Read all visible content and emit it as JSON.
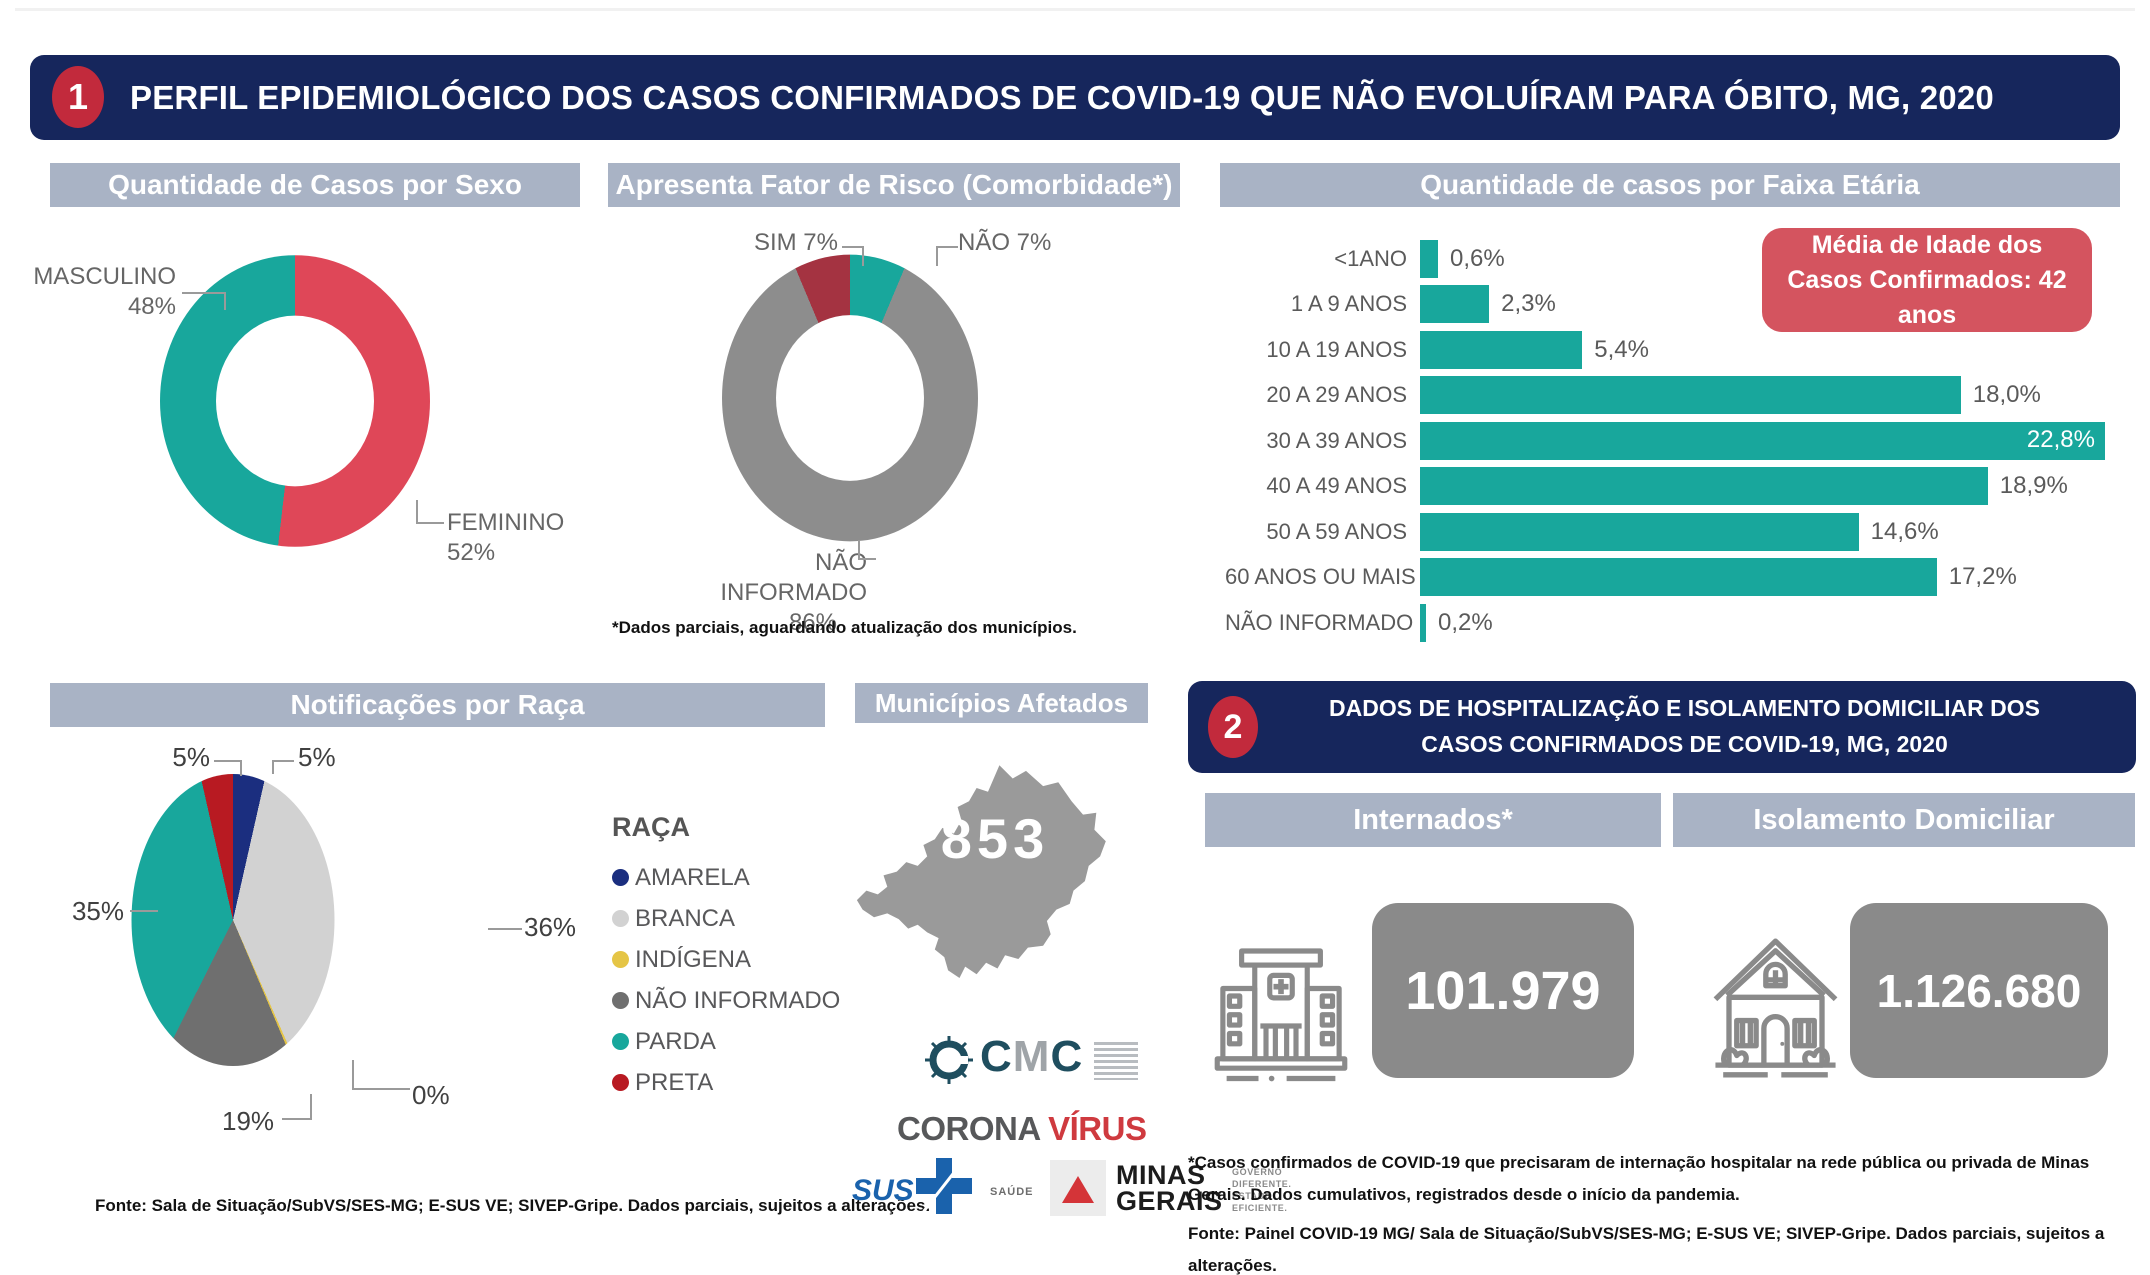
{
  "colors": {
    "navy": "#16265C",
    "badge_red": "#C22A3C",
    "band_gray": "#A9B3C5",
    "teal": "#18A79C",
    "female_red": "#DF4758",
    "dark_red": "#A43341",
    "slice_gray": "#8D8D8D",
    "media_box_red": "#D4545F",
    "value_box_gray": "#8A8A8A",
    "map_gray": "#9A9A9A"
  },
  "panel1": {
    "badge": "1",
    "title": "PERFIL EPIDEMIOLÓGICO DOS CASOS CONFIRMADOS DE COVID-19 QUE NÃO EVOLUÍRAM PARA ÓBITO, MG, 2020"
  },
  "sexo": {
    "header": "Quantidade de Casos por Sexo",
    "label_masculino": "MASCULINO",
    "value_masculino": "48%",
    "label_feminino": "FEMININO",
    "value_feminino": "52%"
  },
  "comorbidade": {
    "header": "Apresenta Fator de Risco (Comorbidade*)",
    "label_sim": "SIM 7%",
    "label_nao": "NÃO 7%",
    "label_ni": "NÃO INFORMADO",
    "value_ni": "86%",
    "footnote": "*Dados parciais, aguardando atualização dos municípios."
  },
  "faixa": {
    "header": "Quantidade de casos por Faixa Etária",
    "media_box": "Média de Idade dos Casos Confirmados: 42 anos"
  },
  "raca": {
    "header": "Notificações por Raça",
    "legend_title": "RAÇA",
    "fonte": "Fonte: Sala de Situação/SubVS/SES-MG; E-SUS VE; SIVEP-Gripe. Dados parciais, sujeitos a alterações."
  },
  "municipios": {
    "header": "Municípios Afetados",
    "count": "853"
  },
  "logos": {
    "cmc_c1": "C",
    "cmc_m": "M",
    "cmc_c2": "C",
    "corona": "CORONA ",
    "virus": "VÍRUS",
    "sus": "SUS",
    "saude": "SAÚDE",
    "mg_line1": "MINAS",
    "mg_line2": "GERAIS",
    "gov": "GOVERNO DIFERENTE. ESTADO EFICIENTE."
  },
  "panel2": {
    "badge": "2",
    "title": "DADOS DE HOSPITALIZAÇÃO E ISOLAMENTO DOMICILIAR DOS CASOS CONFIRMADOS DE COVID-19, MG, 2020",
    "internados_header": "Internados*",
    "isolamento_header": "Isolamento Domiciliar",
    "internados_value": "101.979",
    "isolamento_value": "1.126.680",
    "footnote_1": "*Casos confirmados de COVID-19 que precisaram de internação hospitalar na rede pública ou privada de Minas Gerais. Dados cumulativos, registrados desde o início da pandemia.",
    "footnote_2": "Fonte: Painel COVID-19 MG/ Sala de Situação/SubVS/SES-MG; E-SUS VE; SIVEP-Gripe. Dados parciais, sujeitos a alterações."
  },
  "chart_data": [
    {
      "type": "pie",
      "variant": "donut",
      "title": "Quantidade de Casos por Sexo",
      "start_angle": "top",
      "direction": "clockwise",
      "segments": [
        {
          "label": "FEMININO",
          "value": 52,
          "color": "#DF4758"
        },
        {
          "label": "MASCULINO",
          "value": 48,
          "color": "#18A79C"
        }
      ]
    },
    {
      "type": "pie",
      "variant": "donut",
      "title": "Apresenta Fator de Risco (Comorbidade*)",
      "start_angle": "top",
      "direction": "clockwise",
      "segments": [
        {
          "label": "NÃO",
          "value": 7,
          "color": "#18A79C"
        },
        {
          "label": "NÃO INFORMADO",
          "value": 86,
          "color": "#8D8D8D"
        },
        {
          "label": "SIM",
          "value": 7,
          "color": "#A43341"
        }
      ]
    },
    {
      "type": "bar",
      "orientation": "horizontal",
      "title": "Quantidade de casos por Faixa Etária",
      "categories": [
        "<1ANO",
        "1 A 9 ANOS",
        "10 A 19 ANOS",
        "20 A 29 ANOS",
        "30 A 39 ANOS",
        "40 A 49 ANOS",
        "50 A 59 ANOS",
        "60 ANOS OU MAIS",
        "NÃO INFORMADO"
      ],
      "values": [
        0.6,
        2.3,
        5.4,
        18.0,
        22.8,
        18.9,
        14.6,
        17.2,
        0.2
      ],
      "value_labels": [
        "0,6%",
        "2,3%",
        "5,4%",
        "18,0%",
        "22,8%",
        "18,9%",
        "14,6%",
        "17,2%",
        "0,2%"
      ],
      "xlim": [
        0,
        23.3
      ],
      "bar_color": "#18A79C",
      "annotation": "Média de Idade dos Casos Confirmados: 42 anos"
    },
    {
      "type": "pie",
      "title": "Notificações por Raça",
      "legend_title": "RAÇA",
      "start_angle": "top",
      "direction": "clockwise",
      "segments": [
        {
          "label": "AMARELA",
          "value": 5,
          "color": "#1B2E7F"
        },
        {
          "label": "BRANCA",
          "value": 36,
          "color": "#D2D2D2"
        },
        {
          "label": "INDÍGENA",
          "value": 0,
          "color": "#E5C546"
        },
        {
          "label": "NÃO INFORMADO",
          "value": 19,
          "color": "#6F6F6F"
        },
        {
          "label": "PARDA",
          "value": 35,
          "color": "#18A79C"
        },
        {
          "label": "PRETA",
          "value": 5,
          "color": "#B81A22"
        }
      ],
      "draw_values": [
        5,
        36,
        0.3,
        18.7,
        35,
        5
      ],
      "point_labels": [
        "5%",
        "36%",
        "0%",
        "19%",
        "35%",
        "5%"
      ]
    }
  ]
}
